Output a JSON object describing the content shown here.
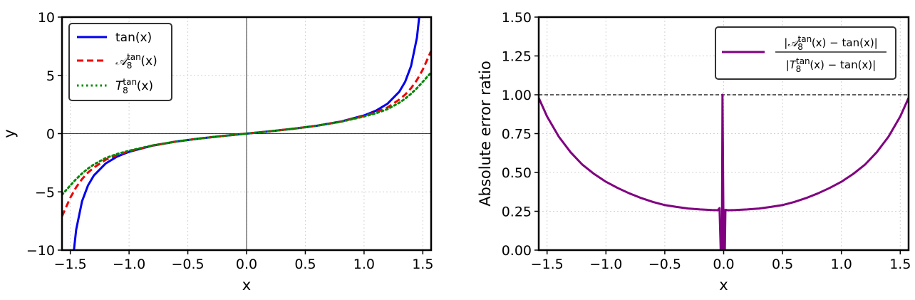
{
  "chart_data": [
    {
      "type": "line",
      "title": "",
      "xlabel": "x",
      "ylabel": "y",
      "xlim": [
        -1.5708,
        1.5708
      ],
      "ylim": [
        -10,
        10
      ],
      "xticks": [
        -1.5,
        -1.0,
        -0.5,
        0.0,
        0.5,
        1.0,
        1.5
      ],
      "xtick_labels": [
        "−1.5",
        "−1.0",
        "−0.5",
        "0.0",
        "0.5",
        "1.0",
        "1.5"
      ],
      "yticks": [
        -10,
        -5,
        0,
        5,
        10
      ],
      "ytick_labels": [
        "−10",
        "−5",
        "0",
        "5",
        "10"
      ],
      "grid": true,
      "legend_position": "top-left",
      "series": [
        {
          "name": "tan(x)",
          "name_main": "tan(x)",
          "name_sup": "",
          "name_tail": "",
          "color": "#0000ee",
          "style": "solid",
          "x": [
            -1.48,
            -1.45,
            -1.4,
            -1.35,
            -1.3,
            -1.2,
            -1.1,
            -1.0,
            -0.8,
            -0.6,
            -0.4,
            -0.2,
            0.0,
            0.2,
            0.4,
            0.6,
            0.8,
            1.0,
            1.1,
            1.2,
            1.3,
            1.35,
            1.4,
            1.45,
            1.48
          ],
          "y": [
            -10.98,
            -8.24,
            -5.8,
            -4.46,
            -3.6,
            -2.57,
            -1.96,
            -1.56,
            -1.03,
            -0.68,
            -0.42,
            -0.2,
            0.0,
            0.2,
            0.42,
            0.68,
            1.03,
            1.56,
            1.96,
            2.57,
            3.6,
            4.46,
            5.8,
            8.24,
            10.98
          ]
        },
        {
          "name": "𝒜₈ᵗᵃⁿ(x)",
          "name_main": "𝒜",
          "name_sup": "tan",
          "name_tail": "(x)",
          "name_sub": "8",
          "color": "#ee0000",
          "style": "dashed",
          "x": [
            -1.5708,
            -1.5,
            -1.45,
            -1.4,
            -1.35,
            -1.3,
            -1.2,
            -1.1,
            -1.0,
            -0.8,
            -0.6,
            -0.4,
            -0.2,
            0.0,
            0.2,
            0.4,
            0.6,
            0.8,
            1.0,
            1.1,
            1.2,
            1.3,
            1.35,
            1.4,
            1.45,
            1.5,
            1.5708
          ],
          "y": [
            -7.1,
            -5.5,
            -4.6,
            -3.9,
            -3.35,
            -2.92,
            -2.25,
            -1.83,
            -1.51,
            -1.02,
            -0.68,
            -0.42,
            -0.2,
            0.0,
            0.2,
            0.42,
            0.68,
            1.02,
            1.51,
            1.83,
            2.25,
            2.92,
            3.35,
            3.9,
            4.6,
            5.5,
            7.1
          ]
        },
        {
          "name": "T₈ᵗᵃⁿ(x)",
          "name_main": "T",
          "name_sup": "tan",
          "name_tail": "(x)",
          "name_sub": "8",
          "color": "#008800",
          "style": "dotted",
          "x": [
            -1.5708,
            -1.5,
            -1.45,
            -1.4,
            -1.35,
            -1.3,
            -1.2,
            -1.1,
            -1.0,
            -0.8,
            -0.6,
            -0.4,
            -0.2,
            0.0,
            0.2,
            0.4,
            0.6,
            0.8,
            1.0,
            1.1,
            1.2,
            1.3,
            1.35,
            1.4,
            1.45,
            1.5,
            1.5708
          ],
          "y": [
            -5.25,
            -4.45,
            -3.9,
            -3.42,
            -3.0,
            -2.65,
            -2.1,
            -1.74,
            -1.47,
            -1.01,
            -0.68,
            -0.42,
            -0.2,
            0.0,
            0.2,
            0.42,
            0.68,
            1.01,
            1.47,
            1.74,
            2.1,
            2.65,
            3.0,
            3.42,
            3.9,
            4.45,
            5.25
          ]
        }
      ]
    },
    {
      "type": "line",
      "title": "",
      "xlabel": "x",
      "ylabel": "Absolute error ratio",
      "xlim": [
        -1.5708,
        1.5708
      ],
      "ylim": [
        0.0,
        1.5
      ],
      "xticks": [
        -1.5,
        -1.0,
        -0.5,
        0.0,
        0.5,
        1.0,
        1.5
      ],
      "xtick_labels": [
        "−1.5",
        "−1.0",
        "−0.5",
        "0.0",
        "0.5",
        "1.0",
        "1.5"
      ],
      "yticks": [
        0.0,
        0.25,
        0.5,
        0.75,
        1.0,
        1.25,
        1.5
      ],
      "ytick_labels": [
        "0.00",
        "0.25",
        "0.50",
        "0.75",
        "1.00",
        "1.25",
        "1.50"
      ],
      "grid": true,
      "legend_position": "top-right",
      "reference_line": {
        "y": 1.0,
        "color": "#000000",
        "style": "dashed"
      },
      "series": [
        {
          "name": "|𝒜₈ᵗᵃⁿ(x) − tan(x)| / |T₈ᵗᵃⁿ(x) − tan(x)|",
          "num_main": "|𝒜",
          "num_sup": "tan",
          "num_sub": "8",
          "num_tail": "(x) − tan(x)|",
          "den_main": "|T",
          "den_sup": "tan",
          "den_sub": "8",
          "den_tail": "(x) − tan(x)|",
          "color": "#800080",
          "style": "solid",
          "x": [
            -1.5708,
            -1.5,
            -1.4,
            -1.3,
            -1.2,
            -1.1,
            -1.0,
            -0.9,
            -0.8,
            -0.7,
            -0.6,
            -0.5,
            -0.4,
            -0.3,
            -0.2,
            -0.1,
            -0.05,
            -0.035,
            -0.025,
            -0.015,
            -0.01,
            0.0,
            0.005,
            0.01,
            0.015,
            0.025,
            0.035,
            0.05,
            0.1,
            0.2,
            0.3,
            0.4,
            0.5,
            0.6,
            0.7,
            0.8,
            0.9,
            1.0,
            1.1,
            1.2,
            1.3,
            1.4,
            1.5,
            1.5708
          ],
          "y": [
            0.98,
            0.86,
            0.73,
            0.63,
            0.55,
            0.49,
            0.44,
            0.4,
            0.365,
            0.335,
            0.31,
            0.29,
            0.278,
            0.268,
            0.262,
            0.258,
            0.257,
            0.27,
            0.0,
            0.0,
            1.0,
            0.0,
            0.0,
            0.0,
            0.26,
            0.258,
            0.257,
            0.257,
            0.258,
            0.262,
            0.268,
            0.278,
            0.29,
            0.31,
            0.335,
            0.365,
            0.4,
            0.44,
            0.49,
            0.55,
            0.63,
            0.73,
            0.86,
            0.98
          ]
        }
      ]
    }
  ]
}
